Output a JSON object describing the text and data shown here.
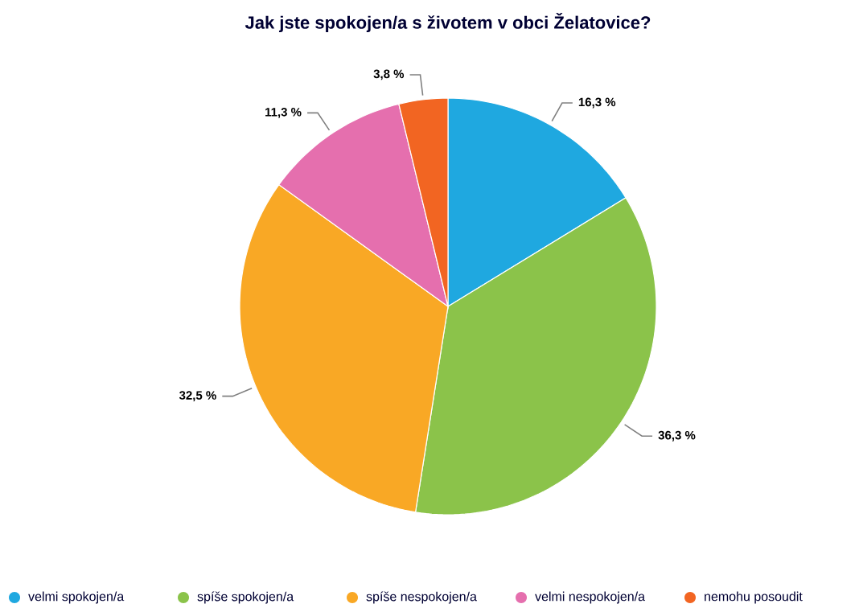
{
  "chart_data": {
    "type": "pie",
    "title": "Jak jste spokojen/a s životem v obci Želatovice?",
    "categories": [
      "velmi spokojen/a",
      "spíše spokojen/a",
      "spíše nespokojen/a",
      "velmi nespokojen/a",
      "nemohu posoudit"
    ],
    "values": [
      16.3,
      36.3,
      32.5,
      11.3,
      3.8
    ],
    "value_labels": [
      "16,3 %",
      "36,3 %",
      "32,5 %",
      "11,3 %",
      "3,8 %"
    ],
    "colors": [
      "#1fa8e0",
      "#8bc34a",
      "#f9a825",
      "#e56fae",
      "#f26522"
    ],
    "legend": "bottom"
  }
}
